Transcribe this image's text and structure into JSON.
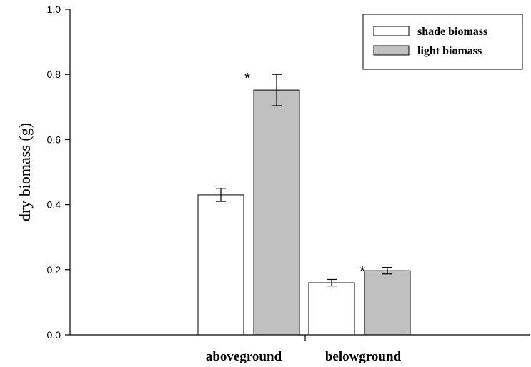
{
  "chart_data": {
    "type": "bar",
    "ylabel": "dry biomass (g)",
    "xlabel": "",
    "ylim": [
      0,
      1.0
    ],
    "yticks": [
      "0.0",
      "0.2",
      "0.4",
      "0.6",
      "0.8",
      "1.0"
    ],
    "categories": [
      "aboveground",
      "belowground"
    ],
    "series": [
      {
        "name": "shade biomass",
        "color": "#ffffff",
        "values": [
          0.43,
          0.16
        ],
        "errors": [
          0.02,
          0.01
        ]
      },
      {
        "name": "light biomass",
        "color": "#c0c0c0",
        "values": [
          0.752,
          0.197
        ],
        "errors": [
          0.048,
          0.01
        ]
      }
    ],
    "significance": [
      "*",
      "*"
    ],
    "legend_position": "top-right",
    "grid": false
  }
}
